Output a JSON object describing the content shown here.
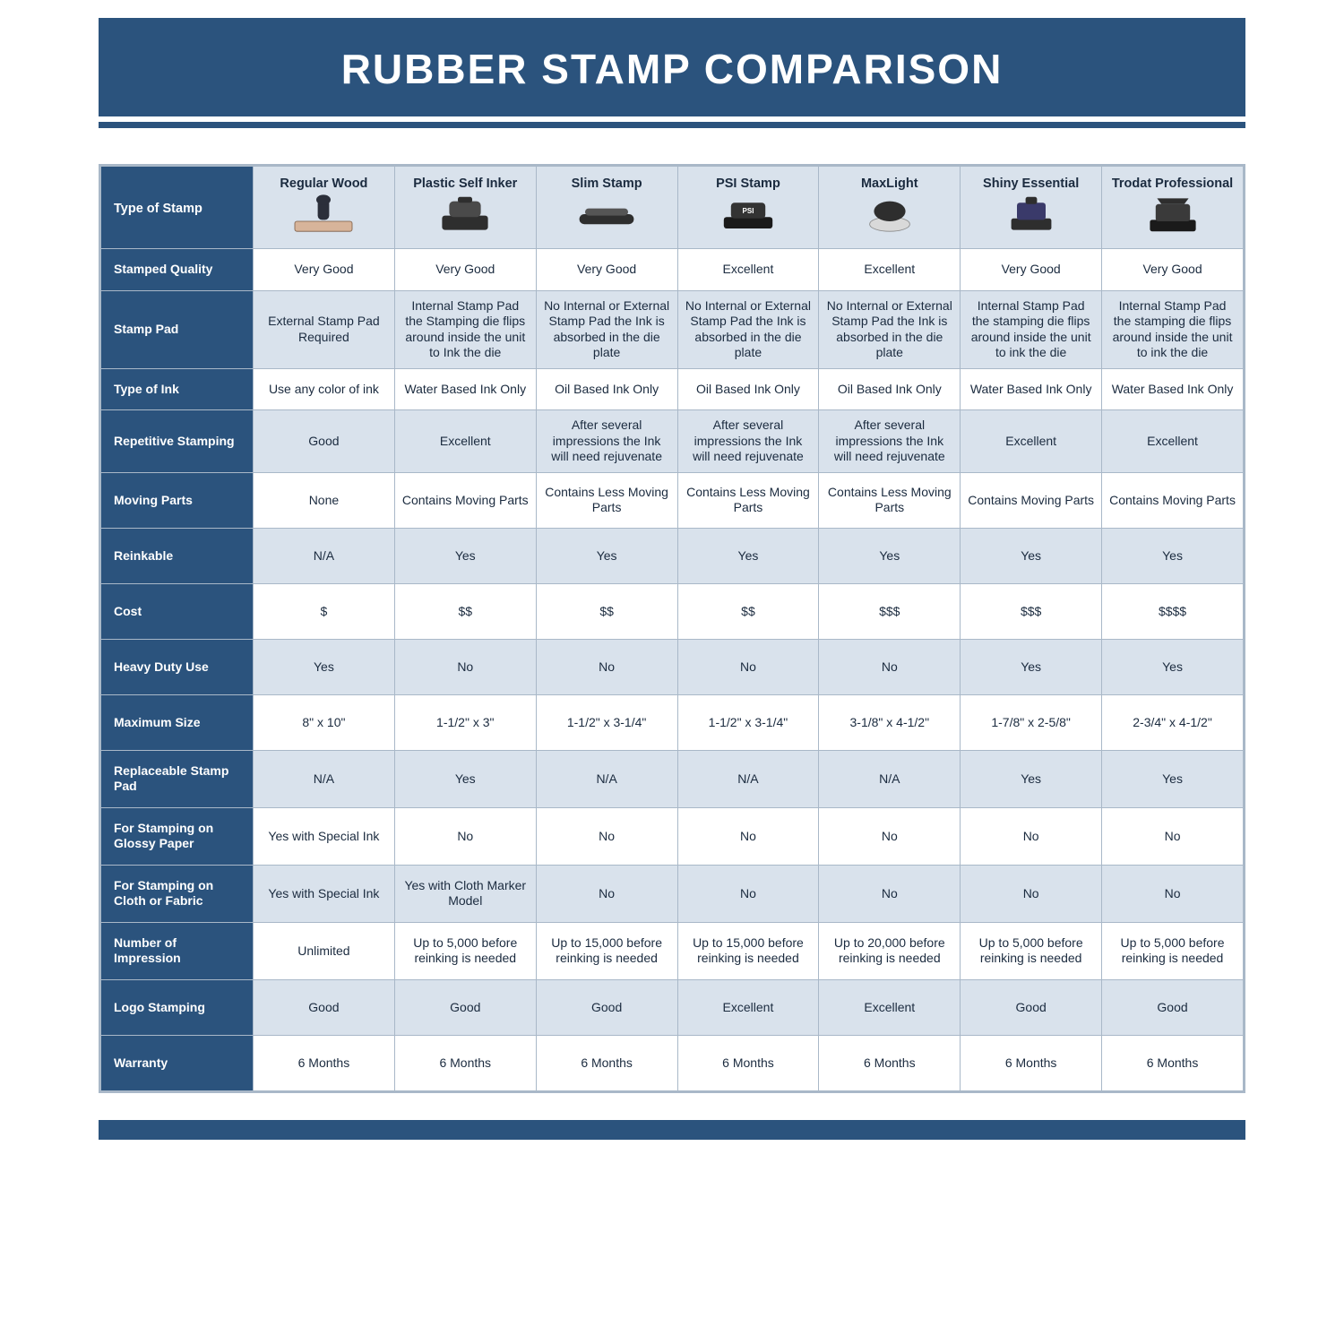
{
  "colors": {
    "brand_navy": "#2b537d",
    "header_tint": "#d9e2ec",
    "grid_line": "#a9b8c8",
    "text": "#1b2b3f",
    "white": "#ffffff"
  },
  "title": "RUBBER STAMP COMPARISON",
  "columns": [
    "Regular Wood",
    "Plastic Self Inker",
    "Slim Stamp",
    "PSI Stamp",
    "MaxLight",
    "Shiny Essential",
    "Trodat Professional"
  ],
  "type_of_stamp_label": "Type of Stamp",
  "rows": [
    {
      "label": "Stamped Quality",
      "alt": false,
      "cells": [
        "Very Good",
        "Very Good",
        "Very Good",
        "Excellent",
        "Excellent",
        "Very Good",
        "Very Good"
      ]
    },
    {
      "label": "Stamp Pad",
      "alt": true,
      "tall": true,
      "cells": [
        "External Stamp Pad Required",
        "Internal Stamp Pad the Stamping die flips around inside the unit to Ink the die",
        "No Internal or External Stamp Pad the Ink is absorbed in the die plate",
        "No Internal or External Stamp Pad the Ink is absorbed in the die plate",
        "No Internal or External Stamp Pad the Ink is absorbed in the die plate",
        "Internal Stamp Pad the stamping die flips around inside the unit to ink the die",
        "Internal Stamp Pad the stamping die flips around inside the unit to ink the die"
      ]
    },
    {
      "label": "Type of Ink",
      "alt": false,
      "cells": [
        "Use any color of ink",
        "Water Based Ink Only",
        "Oil Based Ink Only",
        "Oil Based Ink Only",
        "Oil Based Ink Only",
        "Water Based Ink Only",
        "Water Based Ink Only"
      ]
    },
    {
      "label": "Repetitive Stamping",
      "alt": true,
      "tall": true,
      "cells": [
        "Good",
        "Excellent",
        "After several impressions the Ink will need rejuvenate",
        "After several impressions the Ink will need rejuvenate",
        "After several impressions the Ink will need rejuvenate",
        "Excellent",
        "Excellent"
      ]
    },
    {
      "label": "Moving Parts",
      "alt": false,
      "tall": true,
      "cells": [
        "None",
        "Contains Moving Parts",
        "Contains Less Moving Parts",
        "Contains Less Moving Parts",
        "Contains Less Moving Parts",
        "Contains Moving Parts",
        "Contains Moving Parts"
      ]
    },
    {
      "label": "Reinkable",
      "alt": true,
      "tall": true,
      "cells": [
        "N/A",
        "Yes",
        "Yes",
        "Yes",
        "Yes",
        "Yes",
        "Yes"
      ]
    },
    {
      "label": "Cost",
      "alt": false,
      "tall": true,
      "cells": [
        "$",
        "$$",
        "$$",
        "$$",
        "$$$",
        "$$$",
        "$$$$"
      ]
    },
    {
      "label": "Heavy Duty Use",
      "alt": true,
      "tall": true,
      "cells": [
        "Yes",
        "No",
        "No",
        "No",
        "No",
        "Yes",
        "Yes"
      ]
    },
    {
      "label": "Maximum Size",
      "alt": false,
      "tall": true,
      "cells": [
        "8\" x 10\"",
        "1-1/2\" x 3\"",
        "1-1/2\" x 3-1/4\"",
        "1-1/2\" x 3-1/4\"",
        "3-1/8\" x 4-1/2\"",
        "1-7/8\" x 2-5/8\"",
        "2-3/4\" x 4-1/2\""
      ]
    },
    {
      "label": "Replaceable Stamp Pad",
      "alt": true,
      "tall": true,
      "cells": [
        "N/A",
        "Yes",
        "N/A",
        "N/A",
        "N/A",
        "Yes",
        "Yes"
      ]
    },
    {
      "label": "For Stamping on Glossy Paper",
      "alt": false,
      "tall": true,
      "cells": [
        "Yes with Special Ink",
        "No",
        "No",
        "No",
        "No",
        "No",
        "No"
      ]
    },
    {
      "label": "For Stamping on Cloth or Fabric",
      "alt": true,
      "tall": true,
      "cells": [
        "Yes with Special Ink",
        "Yes with Cloth Marker Model",
        "No",
        "No",
        "No",
        "No",
        "No"
      ]
    },
    {
      "label": "Number of Impression",
      "alt": false,
      "tall": true,
      "cells": [
        "Unlimited",
        "Up to 5,000 before reinking is needed",
        "Up to 15,000 before reinking is needed",
        "Up to 15,000 before reinking is needed",
        "Up to 20,000 before reinking is needed",
        "Up to 5,000 before reinking is needed",
        "Up to 5,000 before reinking is needed"
      ]
    },
    {
      "label": "Logo Stamping",
      "alt": true,
      "tall": true,
      "cells": [
        "Good",
        "Good",
        "Good",
        "Excellent",
        "Excellent",
        "Good",
        "Good"
      ]
    },
    {
      "label": "Warranty",
      "alt": false,
      "tall": true,
      "cells": [
        "6 Months",
        "6 Months",
        "6 Months",
        "6 Months",
        "6 Months",
        "6 Months",
        "6 Months"
      ]
    }
  ]
}
